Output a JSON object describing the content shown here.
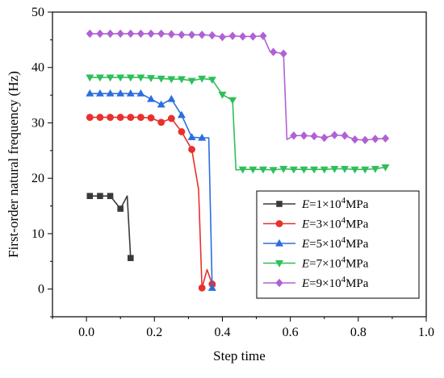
{
  "chart_data": {
    "type": "line",
    "xlabel": "Step time",
    "ylabel": "First-order natural frequency (Hz)",
    "xlim": [
      -0.1,
      1.0
    ],
    "ylim": [
      -5,
      50
    ],
    "xticks": [
      0.0,
      0.2,
      0.4,
      0.6,
      0.8,
      1.0
    ],
    "xtick_labels": [
      "0.0",
      "0.2",
      "0.4",
      "0.6",
      "0.8",
      "1.0"
    ],
    "yticks": [
      0,
      10,
      20,
      30,
      40,
      50
    ],
    "ytick_labels": [
      "0",
      "10",
      "20",
      "30",
      "40",
      "50"
    ],
    "grid": false,
    "legend_position": "bottom-right",
    "series": [
      {
        "legend_prefix": "E",
        "legend_eq": "=1×10",
        "legend_exp": "4",
        "legend_unit": "MPa",
        "color": "#3a3a3a",
        "marker": "square",
        "x": [
          0.01,
          0.04,
          0.07,
          0.1,
          0.12,
          0.13
        ],
        "y": [
          16.8,
          16.8,
          16.8,
          14.5,
          16.8,
          5.6
        ],
        "markers_at": [
          0.01,
          0.04,
          0.07,
          0.1,
          0.13
        ]
      },
      {
        "legend_prefix": "E",
        "legend_eq": "=3×10",
        "legend_exp": "4",
        "legend_unit": "MPa",
        "color": "#e8312c",
        "marker": "circle",
        "x": [
          0.01,
          0.04,
          0.07,
          0.1,
          0.13,
          0.16,
          0.19,
          0.22,
          0.25,
          0.28,
          0.31,
          0.33,
          0.34,
          0.355,
          0.37,
          0.38
        ],
        "y": [
          31.0,
          31.0,
          31.0,
          31.0,
          31.0,
          31.0,
          30.9,
          30.1,
          30.8,
          28.4,
          25.2,
          18.0,
          0.2,
          3.5,
          0.9,
          0.5
        ],
        "markers_at": [
          0.01,
          0.04,
          0.07,
          0.1,
          0.13,
          0.16,
          0.19,
          0.22,
          0.25,
          0.28,
          0.31,
          0.34,
          0.37
        ]
      },
      {
        "legend_prefix": "E",
        "legend_eq": "=5×10",
        "legend_exp": "4",
        "legend_unit": "MPa",
        "color": "#2a6ee0",
        "marker": "triangle-up",
        "x": [
          0.01,
          0.04,
          0.07,
          0.1,
          0.13,
          0.16,
          0.19,
          0.22,
          0.25,
          0.28,
          0.31,
          0.34,
          0.36,
          0.37
        ],
        "y": [
          35.3,
          35.3,
          35.3,
          35.3,
          35.3,
          35.3,
          34.3,
          33.3,
          34.3,
          31.4,
          27.4,
          27.3,
          27.3,
          0.2
        ],
        "markers_at": [
          0.01,
          0.04,
          0.07,
          0.1,
          0.13,
          0.16,
          0.19,
          0.22,
          0.25,
          0.28,
          0.31,
          0.34,
          0.37
        ]
      },
      {
        "legend_prefix": "E",
        "legend_eq": "=7×10",
        "legend_exp": "4",
        "legend_unit": "MPa",
        "color": "#2dbf5a",
        "marker": "triangle-down",
        "x": [
          0.01,
          0.04,
          0.07,
          0.1,
          0.13,
          0.16,
          0.19,
          0.22,
          0.25,
          0.28,
          0.31,
          0.34,
          0.37,
          0.4,
          0.43,
          0.44,
          0.46,
          0.49,
          0.52,
          0.55,
          0.58,
          0.61,
          0.64,
          0.67,
          0.7,
          0.73,
          0.76,
          0.79,
          0.82,
          0.85,
          0.88
        ],
        "y": [
          38.2,
          38.2,
          38.2,
          38.2,
          38.2,
          38.2,
          38.1,
          38.0,
          37.9,
          37.9,
          37.6,
          38.0,
          37.8,
          35.1,
          34.1,
          21.5,
          21.6,
          21.6,
          21.6,
          21.5,
          21.7,
          21.6,
          21.6,
          21.6,
          21.6,
          21.7,
          21.7,
          21.6,
          21.6,
          21.7,
          22.0
        ],
        "markers_at": [
          0.01,
          0.04,
          0.07,
          0.1,
          0.13,
          0.16,
          0.19,
          0.22,
          0.25,
          0.28,
          0.31,
          0.34,
          0.37,
          0.4,
          0.43,
          0.46,
          0.49,
          0.52,
          0.55,
          0.58,
          0.61,
          0.64,
          0.67,
          0.7,
          0.73,
          0.76,
          0.79,
          0.82,
          0.85,
          0.88
        ]
      },
      {
        "legend_prefix": "E",
        "legend_eq": "=9×10",
        "legend_exp": "4",
        "legend_unit": "MPa",
        "color": "#b061d6",
        "marker": "diamond",
        "x": [
          0.01,
          0.04,
          0.07,
          0.1,
          0.13,
          0.16,
          0.19,
          0.22,
          0.25,
          0.28,
          0.31,
          0.34,
          0.37,
          0.4,
          0.43,
          0.46,
          0.49,
          0.52,
          0.54,
          0.56,
          0.58,
          0.59,
          0.61,
          0.64,
          0.67,
          0.7,
          0.73,
          0.76,
          0.79,
          0.82,
          0.85,
          0.88
        ],
        "y": [
          46.1,
          46.1,
          46.1,
          46.1,
          46.1,
          46.1,
          46.1,
          46.1,
          46.0,
          45.9,
          45.9,
          45.9,
          45.8,
          45.5,
          45.7,
          45.6,
          45.6,
          45.7,
          42.9,
          42.7,
          42.5,
          27.0,
          27.7,
          27.7,
          27.6,
          27.3,
          27.8,
          27.7,
          27.0,
          26.9,
          27.1,
          27.2
        ],
        "markers_at": [
          0.01,
          0.04,
          0.07,
          0.1,
          0.13,
          0.16,
          0.19,
          0.22,
          0.25,
          0.28,
          0.31,
          0.34,
          0.37,
          0.4,
          0.43,
          0.46,
          0.49,
          0.52,
          0.55,
          0.58,
          0.61,
          0.64,
          0.67,
          0.7,
          0.73,
          0.76,
          0.79,
          0.82,
          0.85,
          0.88
        ]
      }
    ]
  }
}
